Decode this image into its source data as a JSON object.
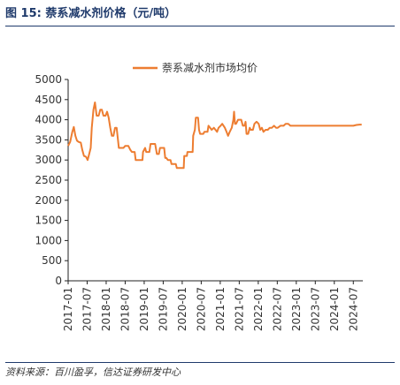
{
  "figure": {
    "title": "图 15:  萘系减水剂价格（元/吨）",
    "source": "资料来源：百川盈孚，信达证券研发中心"
  },
  "chart_data": {
    "type": "line",
    "title": "",
    "xlabel": "",
    "ylabel": "",
    "ylim": [
      0,
      5000
    ],
    "yticks": [
      0,
      500,
      1000,
      1500,
      2000,
      2500,
      3000,
      3500,
      4000,
      4500,
      5000
    ],
    "xlim": [
      "2017-01",
      "2024-10"
    ],
    "xticks": [
      "2017-01",
      "2017-07",
      "2018-01",
      "2018-07",
      "2019-01",
      "2019-07",
      "2020-01",
      "2020-07",
      "2021-01",
      "2021-07",
      "2022-01",
      "2022-07",
      "2023-01",
      "2023-07",
      "2024-01",
      "2024-07"
    ],
    "legend_position": "top",
    "grid": false,
    "series": [
      {
        "name": "萘系减水剂市场均价",
        "color": "#ed7d31",
        "points": [
          [
            "2017-01-01",
            3350
          ],
          [
            "2017-01-20",
            3450
          ],
          [
            "2017-02-10",
            3700
          ],
          [
            "2017-02-25",
            3820
          ],
          [
            "2017-03-10",
            3600
          ],
          [
            "2017-03-25",
            3480
          ],
          [
            "2017-04-10",
            3450
          ],
          [
            "2017-05-01",
            3430
          ],
          [
            "2017-05-15",
            3250
          ],
          [
            "2017-06-01",
            3100
          ],
          [
            "2017-06-20",
            3080
          ],
          [
            "2017-07-05",
            3000
          ],
          [
            "2017-07-20",
            3150
          ],
          [
            "2017-08-05",
            3300
          ],
          [
            "2017-08-15",
            3800
          ],
          [
            "2017-09-01",
            4250
          ],
          [
            "2017-09-15",
            4430
          ],
          [
            "2017-10-01",
            4100
          ],
          [
            "2017-10-20",
            4100
          ],
          [
            "2017-11-05",
            4250
          ],
          [
            "2017-11-20",
            4250
          ],
          [
            "2017-12-05",
            4100
          ],
          [
            "2017-12-25",
            4100
          ],
          [
            "2018-01-10",
            4200
          ],
          [
            "2018-01-25",
            4050
          ],
          [
            "2018-02-10",
            3800
          ],
          [
            "2018-02-25",
            3600
          ],
          [
            "2018-03-10",
            3600
          ],
          [
            "2018-03-25",
            3800
          ],
          [
            "2018-04-10",
            3800
          ],
          [
            "2018-05-01",
            3300
          ],
          [
            "2018-06-15",
            3300
          ],
          [
            "2018-07-01",
            3350
          ],
          [
            "2018-08-01",
            3350
          ],
          [
            "2018-08-20",
            3250
          ],
          [
            "2018-09-05",
            3200
          ],
          [
            "2018-10-01",
            3200
          ],
          [
            "2018-10-10",
            3000
          ],
          [
            "2018-12-15",
            3000
          ],
          [
            "2018-12-20",
            3200
          ],
          [
            "2019-01-10",
            3300
          ],
          [
            "2019-01-20",
            3200
          ],
          [
            "2019-02-20",
            3200
          ],
          [
            "2019-03-01",
            3400
          ],
          [
            "2019-04-15",
            3400
          ],
          [
            "2019-05-01",
            3150
          ],
          [
            "2019-05-20",
            3150
          ],
          [
            "2019-06-01",
            3300
          ],
          [
            "2019-07-10",
            3300
          ],
          [
            "2019-07-20",
            3050
          ],
          [
            "2019-08-01",
            3050
          ],
          [
            "2019-08-15",
            3000
          ],
          [
            "2019-09-10",
            3000
          ],
          [
            "2019-09-20",
            2900
          ],
          [
            "2019-11-01",
            2900
          ],
          [
            "2019-11-10",
            2800
          ],
          [
            "2020-01-15",
            2800
          ],
          [
            "2020-01-20",
            3100
          ],
          [
            "2020-02-15",
            3100
          ],
          [
            "2020-02-20",
            3200
          ],
          [
            "2020-04-10",
            3200
          ],
          [
            "2020-04-15",
            3600
          ],
          [
            "2020-05-01",
            3750
          ],
          [
            "2020-05-10",
            4050
          ],
          [
            "2020-06-01",
            4050
          ],
          [
            "2020-06-10",
            3750
          ],
          [
            "2020-06-20",
            3650
          ],
          [
            "2020-07-20",
            3650
          ],
          [
            "2020-08-01",
            3700
          ],
          [
            "2020-09-01",
            3700
          ],
          [
            "2020-09-10",
            3850
          ],
          [
            "2020-10-10",
            3750
          ],
          [
            "2020-11-01",
            3800
          ],
          [
            "2020-12-01",
            3700
          ],
          [
            "2020-12-15",
            3800
          ],
          [
            "2021-01-05",
            3850
          ],
          [
            "2021-01-20",
            3900
          ],
          [
            "2021-02-15",
            3800
          ],
          [
            "2021-03-01",
            3700
          ],
          [
            "2021-03-15",
            3600
          ],
          [
            "2021-04-01",
            3700
          ],
          [
            "2021-04-20",
            3800
          ],
          [
            "2021-05-05",
            4000
          ],
          [
            "2021-05-12",
            4200
          ],
          [
            "2021-05-20",
            3900
          ],
          [
            "2021-06-01",
            3900
          ],
          [
            "2021-06-20",
            4000
          ],
          [
            "2021-07-20",
            4000
          ],
          [
            "2021-08-05",
            3850
          ],
          [
            "2021-08-20",
            3850
          ],
          [
            "2021-09-01",
            3950
          ],
          [
            "2021-09-10",
            3650
          ],
          [
            "2021-09-25",
            3650
          ],
          [
            "2021-10-10",
            3800
          ],
          [
            "2021-10-20",
            3750
          ],
          [
            "2021-11-10",
            3750
          ],
          [
            "2021-11-25",
            3900
          ],
          [
            "2021-12-15",
            3950
          ],
          [
            "2022-01-05",
            3900
          ],
          [
            "2022-01-20",
            3750
          ],
          [
            "2022-02-05",
            3800
          ],
          [
            "2022-02-20",
            3700
          ],
          [
            "2022-03-10",
            3750
          ],
          [
            "2022-04-01",
            3750
          ],
          [
            "2022-04-20",
            3800
          ],
          [
            "2022-05-10",
            3800
          ],
          [
            "2022-06-01",
            3850
          ],
          [
            "2022-06-20",
            3800
          ],
          [
            "2022-07-05",
            3800
          ],
          [
            "2022-08-01",
            3850
          ],
          [
            "2022-09-01",
            3850
          ],
          [
            "2022-09-20",
            3900
          ],
          [
            "2022-10-15",
            3900
          ],
          [
            "2022-11-05",
            3850
          ],
          [
            "2022-12-01",
            3850
          ],
          [
            "2023-01-01",
            3850
          ],
          [
            "2023-02-01",
            3850
          ],
          [
            "2023-03-01",
            3850
          ],
          [
            "2023-04-01",
            3850
          ],
          [
            "2023-05-01",
            3850
          ],
          [
            "2023-06-01",
            3850
          ],
          [
            "2023-07-01",
            3850
          ],
          [
            "2023-08-01",
            3850
          ],
          [
            "2023-09-01",
            3850
          ],
          [
            "2023-10-01",
            3850
          ],
          [
            "2023-11-01",
            3850
          ],
          [
            "2023-12-01",
            3850
          ],
          [
            "2024-01-01",
            3850
          ],
          [
            "2024-02-01",
            3850
          ],
          [
            "2024-03-01",
            3850
          ],
          [
            "2024-04-01",
            3850
          ],
          [
            "2024-05-01",
            3850
          ],
          [
            "2024-06-01",
            3850
          ],
          [
            "2024-07-01",
            3850
          ],
          [
            "2024-08-01",
            3870
          ],
          [
            "2024-09-01",
            3880
          ],
          [
            "2024-09-20",
            3880
          ]
        ]
      }
    ]
  }
}
